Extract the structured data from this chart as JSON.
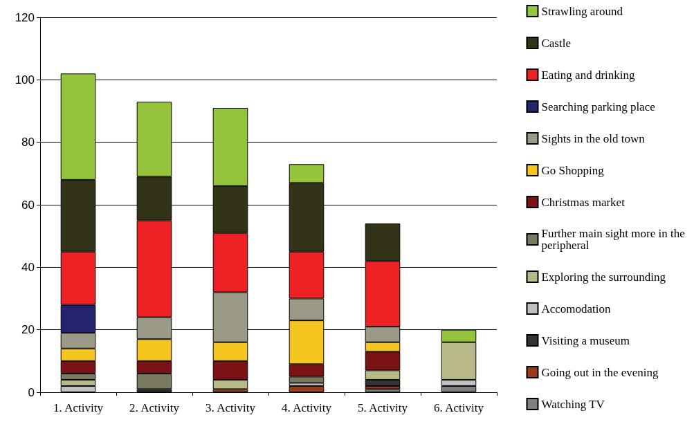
{
  "chart_data": {
    "type": "bar",
    "stacked": true,
    "categories": [
      "1. Activity",
      "2. Activity",
      "3. Activity",
      "4. Activity",
      "5. Activity",
      "6. Activity"
    ],
    "ylim": [
      0,
      120
    ],
    "yticks": [
      0,
      20,
      40,
      60,
      80,
      100,
      120
    ],
    "grid": "y",
    "legend": "right",
    "series": [
      {
        "name": "Watching TV",
        "color": "#808080",
        "values": [
          0,
          0,
          0,
          0,
          1,
          2
        ]
      },
      {
        "name": "Going out in the evening",
        "color": "#993c1d",
        "values": [
          0,
          0,
          1,
          2,
          1,
          0
        ]
      },
      {
        "name": "Visiting a museum",
        "color": "#333333",
        "values": [
          0,
          1,
          0,
          0,
          2,
          0
        ]
      },
      {
        "name": "Accomodation",
        "color": "#c0c0c0",
        "values": [
          2,
          0,
          0,
          1,
          0,
          2
        ]
      },
      {
        "name": "Exploring the surrounding",
        "color": "#b8b888",
        "values": [
          2,
          0,
          3,
          0,
          3,
          12
        ]
      },
      {
        "name": "Further main sight more in the peripheral",
        "color": "#7a7a60",
        "values": [
          2,
          5,
          0,
          2,
          0,
          0
        ]
      },
      {
        "name": "Christmas market",
        "color": "#7b1314",
        "values": [
          4,
          4,
          6,
          4,
          6,
          0
        ]
      },
      {
        "name": "Go Shopping",
        "color": "#f5c520",
        "values": [
          4,
          7,
          6,
          14,
          3,
          0
        ]
      },
      {
        "name": "Sights in the old town",
        "color": "#9a9a86",
        "values": [
          5,
          7,
          16,
          7,
          5,
          0
        ]
      },
      {
        "name": "Searching parking place",
        "color": "#23246c",
        "values": [
          9,
          0,
          0,
          0,
          0,
          0
        ]
      },
      {
        "name": "Eating and drinking",
        "color": "#ee2224",
        "values": [
          17,
          31,
          19,
          15,
          21,
          0
        ]
      },
      {
        "name": "Castle",
        "color": "#333318",
        "values": [
          23,
          14,
          15,
          22,
          12,
          0
        ]
      },
      {
        "name": "Strawling around",
        "color": "#95c43c",
        "values": [
          34,
          24,
          25,
          6,
          0,
          4
        ]
      }
    ]
  }
}
